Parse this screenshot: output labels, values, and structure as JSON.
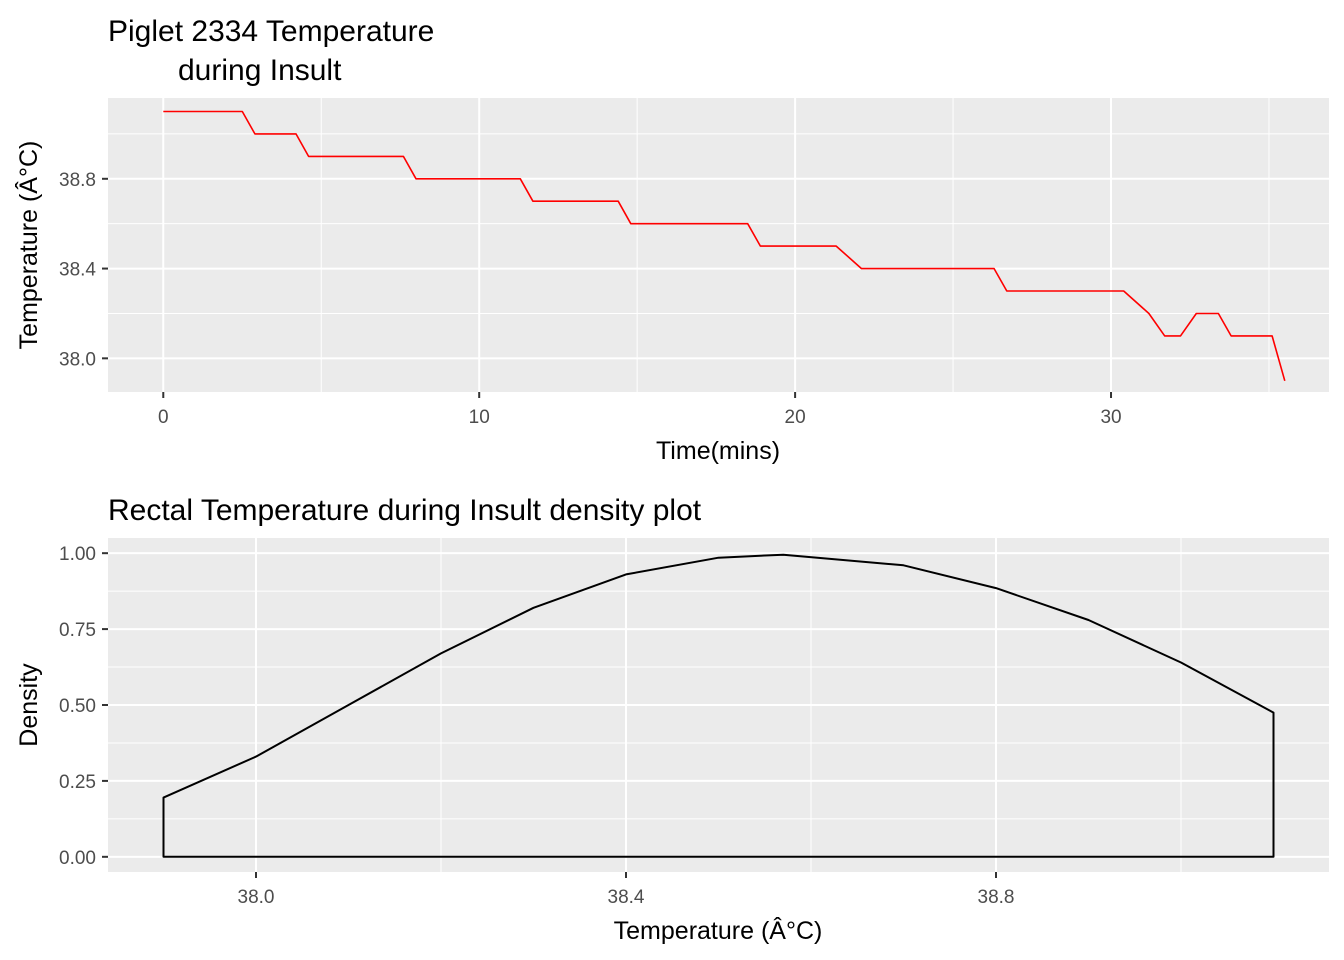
{
  "chart_data": [
    {
      "type": "line",
      "title_line1": "Piglet 2334 Temperature",
      "title_line2": "during Insult",
      "xlabel": "Time(mins)",
      "ylabel": "Temperature (Â°C)",
      "xlim": [
        -1.75,
        36.9
      ],
      "ylim": [
        37.85,
        39.16
      ],
      "x_ticks": [
        0,
        10,
        20,
        30
      ],
      "x_tick_labels": [
        "0",
        "10",
        "20",
        "30"
      ],
      "y_ticks": [
        38.0,
        38.4,
        38.8
      ],
      "y_tick_labels": [
        "38.0",
        "38.4",
        "38.8"
      ],
      "grid": true,
      "line_color": "#ff0000",
      "series": [
        {
          "x": [
            0,
            2.5,
            2.9,
            4.2,
            4.6,
            7.6,
            8.0,
            11.3,
            11.7,
            14.4,
            14.8,
            18.5,
            18.9,
            21.3,
            22.1,
            26.3,
            26.7,
            30.4,
            31.2,
            31.7,
            32.2,
            32.7,
            33.4,
            33.8,
            35.1,
            35.5
          ],
          "y": [
            39.1,
            39.1,
            39.0,
            39.0,
            38.9,
            38.9,
            38.8,
            38.8,
            38.7,
            38.7,
            38.6,
            38.6,
            38.5,
            38.5,
            38.4,
            38.4,
            38.3,
            38.3,
            38.2,
            38.1,
            38.1,
            38.2,
            38.2,
            38.1,
            38.1,
            37.9
          ]
        }
      ]
    },
    {
      "type": "area",
      "title": "Rectal Temperature during Insult density plot",
      "xlabel": "Temperature (Â°C)",
      "ylabel": "Density",
      "xlim": [
        37.84,
        39.16
      ],
      "ylim": [
        -0.05,
        1.05
      ],
      "x_ticks": [
        38.0,
        38.4,
        38.8
      ],
      "x_tick_labels": [
        "38.0",
        "38.4",
        "38.8"
      ],
      "y_ticks": [
        0.0,
        0.25,
        0.5,
        0.75,
        1.0
      ],
      "y_tick_labels": [
        "0.00",
        "0.25",
        "0.50",
        "0.75",
        "1.00"
      ],
      "grid": true,
      "line_color": "#000000",
      "series": [
        {
          "x": [
            37.9,
            38.0,
            38.1,
            38.2,
            38.3,
            38.4,
            38.5,
            38.57,
            38.7,
            38.8,
            38.9,
            39.0,
            39.1
          ],
          "y": [
            0.195,
            0.33,
            0.5,
            0.67,
            0.82,
            0.93,
            0.985,
            0.995,
            0.96,
            0.885,
            0.78,
            0.64,
            0.475
          ]
        }
      ]
    }
  ]
}
